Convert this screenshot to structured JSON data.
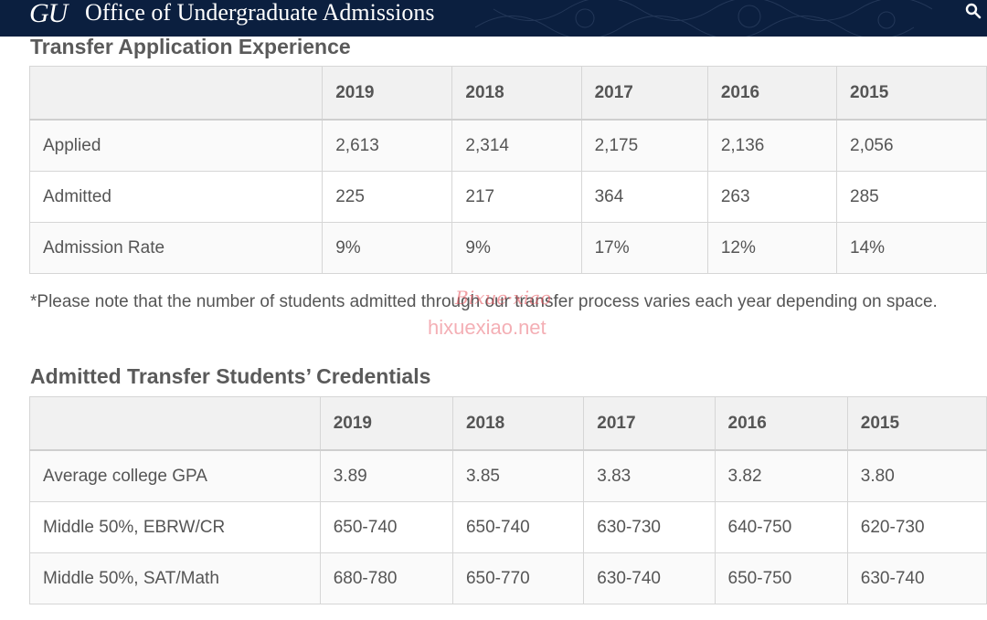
{
  "header": {
    "logo": "GU",
    "title": "Office of Undergraduate Admissions"
  },
  "experience": {
    "heading": "Transfer Application Experience",
    "columns": [
      "",
      "2019",
      "2018",
      "2017",
      "2016",
      "2015"
    ],
    "rows": [
      [
        "Applied",
        "2,613",
        "2,314",
        "2,175",
        "2,136",
        "2,056"
      ],
      [
        "Admitted",
        "225",
        "217",
        "364",
        "263",
        "285"
      ],
      [
        "Admission Rate",
        "9%",
        "9%",
        "17%",
        "12%",
        "14%"
      ]
    ],
    "note": "*Please note that the number of students admitted through our transfer process varies each year depending on space."
  },
  "credentials": {
    "heading": "Admitted Transfer Students’ Credentials",
    "columns": [
      "",
      "2019",
      "2018",
      "2017",
      "2016",
      "2015"
    ],
    "rows": [
      [
        "Average college GPA",
        "3.89",
        "3.85",
        "3.83",
        "3.82",
        "3.80"
      ],
      [
        "Middle 50%, EBRW/CR",
        "650-740",
        "650-740",
        "630-730",
        "640-750",
        "620-730"
      ],
      [
        "Middle 50%, SAT/Math",
        "680-780",
        "650-770",
        "630-740",
        "650-750",
        "630-740"
      ]
    ]
  },
  "watermark": {
    "script": "Bixue·xiao",
    "url": "hixuexiao.net"
  },
  "icons": {
    "search": "search-icon"
  }
}
